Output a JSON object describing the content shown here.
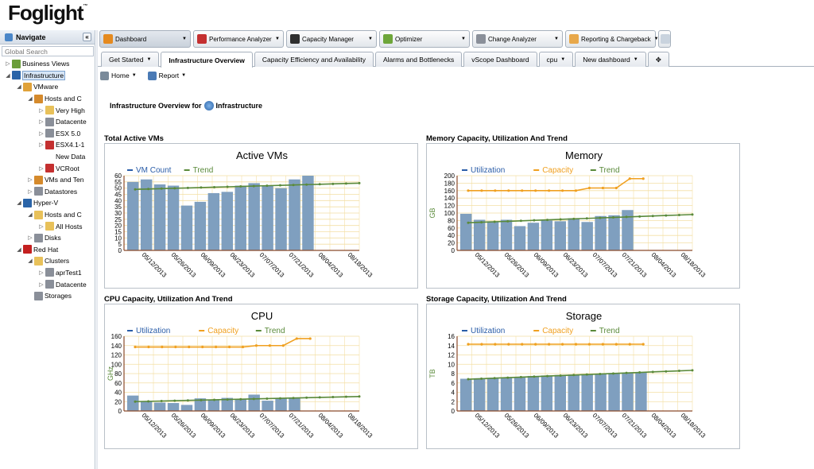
{
  "app": {
    "title": "Foglight",
    "tm": "™"
  },
  "navigate": {
    "title": "Navigate",
    "collapse_label": "«",
    "search_placeholder": "Global Search",
    "tree": [
      {
        "label": "Business Views",
        "depth": 0,
        "arrow": "▷",
        "icon": "views-icon",
        "color": "#6b9e3a"
      },
      {
        "label": "Infrastructure",
        "depth": 0,
        "arrow": "◢",
        "icon": "infrastructure-icon",
        "color": "#2a64a8",
        "selected": true
      },
      {
        "label": "VMware",
        "depth": 1,
        "arrow": "◢",
        "icon": "vmware-icon",
        "color": "#e0a23a"
      },
      {
        "label": "Hosts and C",
        "depth": 2,
        "arrow": "◢",
        "icon": "hosts-icon",
        "color": "#d58a2c"
      },
      {
        "label": "Very High",
        "depth": 3,
        "arrow": "▷",
        "icon": "folder-icon",
        "color": "#e8c15a"
      },
      {
        "label": "Datacente",
        "depth": 3,
        "arrow": "▷",
        "icon": "datacenter-icon",
        "color": "#8a8f99"
      },
      {
        "label": "ESX 5.0",
        "depth": 3,
        "arrow": "▷",
        "icon": "server-icon",
        "color": "#8a8f99"
      },
      {
        "label": "ESX4.1-1",
        "depth": 3,
        "arrow": "▷",
        "icon": "server-alert-icon",
        "color": "#c43030"
      },
      {
        "label": "New Data",
        "depth": 3,
        "arrow": "",
        "icon": "",
        "color": ""
      },
      {
        "label": "VCRoot",
        "depth": 3,
        "arrow": "▷",
        "icon": "vcroot-alert-icon",
        "color": "#c43030"
      },
      {
        "label": "VMs and Ten",
        "depth": 2,
        "arrow": "▷",
        "icon": "vms-icon",
        "color": "#d58a2c"
      },
      {
        "label": "Datastores",
        "depth": 2,
        "arrow": "▷",
        "icon": "datastore-icon",
        "color": "#8a8f99"
      },
      {
        "label": "Hyper-V",
        "depth": 1,
        "arrow": "◢",
        "icon": "hyperv-icon",
        "color": "#2a64a8"
      },
      {
        "label": "Hosts and C",
        "depth": 2,
        "arrow": "◢",
        "icon": "folder-icon",
        "color": "#e8c15a"
      },
      {
        "label": "All Hosts",
        "depth": 3,
        "arrow": "▷",
        "icon": "folder-icon",
        "color": "#e8c15a"
      },
      {
        "label": "Disks",
        "depth": 2,
        "arrow": "▷",
        "icon": "disk-icon",
        "color": "#8a8f99"
      },
      {
        "label": "Red Hat",
        "depth": 1,
        "arrow": "◢",
        "icon": "redhat-icon",
        "color": "#c42020"
      },
      {
        "label": "Clusters",
        "depth": 2,
        "arrow": "◢",
        "icon": "folder-icon",
        "color": "#e8c15a"
      },
      {
        "label": "aprTest1",
        "depth": 3,
        "arrow": "▷",
        "icon": "server-icon",
        "color": "#8a8f99"
      },
      {
        "label": "Datacente",
        "depth": 3,
        "arrow": "▷",
        "icon": "datacenter-icon",
        "color": "#8a8f99"
      },
      {
        "label": "Storages",
        "depth": 2,
        "arrow": "",
        "icon": "storage-icon",
        "color": "#8a8f99"
      }
    ]
  },
  "topnav": [
    {
      "label": "Dashboard",
      "icon": "dashboard-icon",
      "color": "#e58a1f",
      "active": true,
      "width": 115
    },
    {
      "label": "Performance Analyzer",
      "icon": "performance-icon",
      "color": "#c43030",
      "width": 114
    },
    {
      "label": "Capacity Manager",
      "icon": "capacity-icon",
      "color": "#2f2f2f",
      "width": 114
    },
    {
      "label": "Optimizer",
      "icon": "optimizer-icon",
      "color": "#6ea63a",
      "width": 114
    },
    {
      "label": "Change Analyzer",
      "icon": "change-icon",
      "color": "#8a8f99",
      "width": 114
    },
    {
      "label": "Reporting & Chargeback",
      "icon": "reporting-icon",
      "color": "#e8a84a",
      "width": 114
    }
  ],
  "topnav_extra_icon": "window-icon",
  "subtabs": [
    {
      "label": "Get Started",
      "dropdown": true
    },
    {
      "label": "Infrastructure Overview",
      "active": true
    },
    {
      "label": "Capacity Efficiency and Availability"
    },
    {
      "label": "Alarms and Bottlenecks"
    },
    {
      "label": "vScope Dashboard"
    },
    {
      "label": "cpu",
      "dropdown": true
    },
    {
      "label": "New dashboard",
      "dropdown": true
    },
    {
      "label": "✥"
    }
  ],
  "toolbar": {
    "home": "Home",
    "report": "Report"
  },
  "overview": {
    "prefix": "Infrastructure Overview for",
    "target": "Infrastructure"
  },
  "colors": {
    "bar": "#7f9fbf",
    "capacity": "#f0a020",
    "trend": "#5a8a3a",
    "utilization": "#2a5da8",
    "grid": "#f3dfa5"
  },
  "chart_data": [
    {
      "section_title": "Total Active VMs",
      "title": "Active VMs",
      "type": "bar",
      "ylabel": "",
      "ylim": [
        0,
        60
      ],
      "yticks": [
        0,
        5,
        10,
        15,
        20,
        25,
        30,
        35,
        40,
        45,
        50,
        55,
        60
      ],
      "xticks": [
        "05/12/2013",
        "05/26/2013",
        "06/09/2013",
        "06/23/2013",
        "07/07/2013",
        "07/21/2013",
        "08/04/2013",
        "08/18/2013"
      ],
      "legend": [
        "VM Count",
        "Trend"
      ],
      "series": [
        {
          "name": "VM Count",
          "kind": "bar",
          "values": [
            55,
            57,
            53,
            52,
            36,
            39,
            46,
            47,
            52,
            54,
            52,
            50,
            57,
            60
          ]
        },
        {
          "name": "Trend",
          "kind": "line",
          "start": 49,
          "end": 54,
          "points": 18
        }
      ]
    },
    {
      "section_title": "Memory Capacity, Utilization And Trend",
      "title": "Memory",
      "type": "bar",
      "ylabel": "GB",
      "ylim": [
        0,
        200
      ],
      "yticks": [
        0,
        20,
        40,
        60,
        80,
        100,
        120,
        140,
        160,
        180,
        200
      ],
      "xticks": [
        "05/12/2013",
        "05/26/2013",
        "06/09/2013",
        "06/23/2013",
        "07/07/2013",
        "07/21/2013",
        "08/04/2013",
        "08/18/2013"
      ],
      "legend": [
        "Utilization",
        "Capacity",
        "Trend"
      ],
      "series": [
        {
          "name": "Utilization",
          "kind": "bar",
          "values": [
            98,
            82,
            78,
            82,
            65,
            74,
            80,
            78,
            86,
            76,
            92,
            94,
            108
          ]
        },
        {
          "name": "Capacity",
          "kind": "capline",
          "values": [
            160,
            160,
            160,
            160,
            160,
            160,
            160,
            160,
            160,
            167,
            167,
            167,
            192,
            192
          ]
        },
        {
          "name": "Trend",
          "kind": "line",
          "start": 74,
          "end": 96,
          "points": 18
        }
      ]
    },
    {
      "section_title": "CPU Capacity, Utilization And Trend",
      "title": "CPU",
      "type": "bar",
      "ylabel": "GHz",
      "ylim": [
        0,
        160
      ],
      "yticks": [
        0,
        20,
        40,
        60,
        80,
        100,
        120,
        140,
        160
      ],
      "xticks": [
        "05/12/2013",
        "05/26/2013",
        "06/09/2013",
        "06/23/2013",
        "07/07/2013",
        "07/21/2013",
        "08/04/2013",
        "08/18/2013"
      ],
      "legend": [
        "Utilization",
        "Capacity",
        "Trend"
      ],
      "series": [
        {
          "name": "Utilization",
          "kind": "bar",
          "values": [
            33,
            20,
            18,
            17,
            13,
            27,
            23,
            28,
            25,
            35,
            22,
            28,
            29
          ]
        },
        {
          "name": "Capacity",
          "kind": "capline",
          "values": [
            137,
            137,
            137,
            137,
            137,
            137,
            137,
            137,
            137,
            140,
            140,
            140,
            155,
            155
          ]
        },
        {
          "name": "Trend",
          "kind": "line",
          "start": 20,
          "end": 31,
          "points": 18
        }
      ]
    },
    {
      "section_title": "Storage Capacity, Utilization And Trend",
      "title": "Storage",
      "type": "bar",
      "ylabel": "TB",
      "ylim": [
        0,
        16
      ],
      "yticks": [
        0,
        2,
        4,
        6,
        8,
        10,
        12,
        14,
        16
      ],
      "xticks": [
        "05/12/2013",
        "05/26/2013",
        "06/09/2013",
        "06/23/2013",
        "07/07/2013",
        "07/21/2013",
        "08/04/2013",
        "08/18/2013"
      ],
      "legend": [
        "Utilization",
        "Capacity",
        "Trend"
      ],
      "series": [
        {
          "name": "Utilization",
          "kind": "bar",
          "values": [
            6.9,
            7.0,
            7.1,
            7.2,
            7.3,
            7.5,
            7.6,
            7.7,
            7.8,
            7.9,
            8.0,
            8.1,
            8.2,
            8.3
          ]
        },
        {
          "name": "Capacity",
          "kind": "capline",
          "values": [
            14.3,
            14.3,
            14.3,
            14.3,
            14.3,
            14.3,
            14.3,
            14.3,
            14.3,
            14.3,
            14.3,
            14.3,
            14.3,
            14.3
          ]
        },
        {
          "name": "Trend",
          "kind": "line",
          "start": 6.8,
          "end": 8.7,
          "points": 18
        }
      ]
    }
  ]
}
